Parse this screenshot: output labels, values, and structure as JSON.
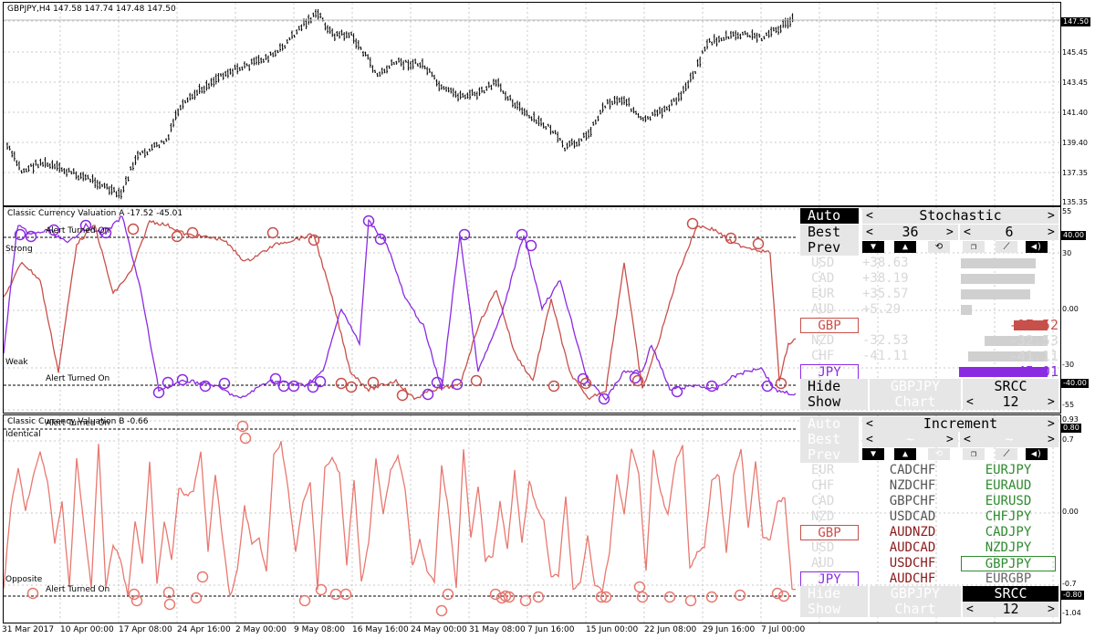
{
  "colors": {
    "price": "#000000",
    "line_a": "#c8504a",
    "line_b": "#8a2be2",
    "line_c": "#e87870",
    "grid": "#c8c8c8",
    "green": "#2e8b2e",
    "dark_red": "#8b1a1a"
  },
  "main_pane": {
    "title": "GBPJPY,H4  147.58 147.74 147.48 147.50",
    "price_tag": "147.50",
    "y_ticks": [
      "147.50",
      "145.45",
      "143.45",
      "141.40",
      "139.40",
      "137.35",
      "135.35"
    ]
  },
  "pane_a": {
    "title": "Classic Currency Valuation A -17.52 -45.01",
    "label_strong": "Strong",
    "label_weak": "Weak",
    "alert_top": "Alert Turned On",
    "alert_bottom": "Alert Turned On",
    "y_ticks": [
      "55",
      "30",
      "0.00",
      "-30",
      "-55"
    ],
    "tag_top": "40.00",
    "tag_bottom": "-40.00"
  },
  "pane_b": {
    "title": "Classic Currency Valuation B -0.66",
    "label_identical": "Identical",
    "label_opposite": "Opposite",
    "alert_top": "Alert Turned On",
    "alert_bottom": "Alert Turned On",
    "y_ticks": [
      "0.93",
      "0.7",
      "0.00",
      "-0.7",
      "-1.04"
    ],
    "tag_top": "0.80",
    "tag_bottom": "-0.80"
  },
  "x_ticks": [
    "31 Mar 2017",
    "10 Apr 00:00",
    "17 Apr 08:00",
    "24 Apr 16:00",
    "2 May 00:00",
    "9 May 08:00",
    "16 May 16:00",
    "24 May 00:00",
    "31 May 08:00",
    "7 Jun 16:00",
    "15 Jun 00:00",
    "22 Jun 08:00",
    "29 Jun 16:00",
    "7 Jul 00:00"
  ],
  "panel_a": {
    "auto": "Auto",
    "mode": "Stochastic",
    "best": "Best",
    "best_value": "36",
    "best_value2": "6",
    "prev": "Prev",
    "arrow_left": "<",
    "arrow_right": ">",
    "currencies": [
      {
        "name": "USD",
        "value": "+38.63",
        "bar": 0.85,
        "active": false
      },
      {
        "name": "CAD",
        "value": "+38.19",
        "bar": 0.84,
        "active": false
      },
      {
        "name": "EUR",
        "value": "+35.57",
        "bar": 0.78,
        "active": false
      },
      {
        "name": "AUD",
        "value": "+5.29",
        "bar": 0.12,
        "active": false
      },
      {
        "name": "GBP",
        "value": "-17.52",
        "bar": 0.38,
        "active": true
      },
      {
        "name": "NZD",
        "value": "-32.53",
        "bar": 0.71,
        "active": false
      },
      {
        "name": "CHF",
        "value": "-41.11",
        "bar": 0.9,
        "active": false
      },
      {
        "name": "JPY",
        "value": "-45.01",
        "bar": 1.0,
        "active": true
      }
    ],
    "hide": "Hide",
    "pair": "GBPJPY",
    "method": "SRCC",
    "show": "Show",
    "chart": "Chart",
    "show_value": "12"
  },
  "panel_b": {
    "auto": "Auto",
    "mode": "Increment",
    "best": "Best",
    "best_value": "~",
    "best_value2": "~",
    "prev": "Prev",
    "rows": [
      {
        "cur": "EUR",
        "pair1": "CADCHF",
        "pair2": "EURJPY"
      },
      {
        "cur": "CHF",
        "pair1": "NZDCHF",
        "pair2": "EURAUD"
      },
      {
        "cur": "CAD",
        "pair1": "GBPCHF",
        "pair2": "EURUSD"
      },
      {
        "cur": "NZD",
        "pair1": "USDCAD",
        "pair2": "CHFJPY"
      },
      {
        "cur": "GBP",
        "pair1": "AUDNZD",
        "pair2": "CADJPY"
      },
      {
        "cur": "USD",
        "pair1": "AUDCAD",
        "pair2": "NZDJPY"
      },
      {
        "cur": "AUD",
        "pair1": "USDCHF",
        "pair2": "GBPJPY"
      },
      {
        "cur": "JPY",
        "pair1": "AUDCHF",
        "pair2": "EURGBP"
      }
    ],
    "hide": "Hide",
    "pair": "GBPJPY",
    "method": "SRCC",
    "show": "Show",
    "chart": "Chart",
    "show_value": "12"
  }
}
